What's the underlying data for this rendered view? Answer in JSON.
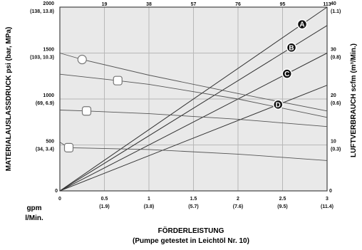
{
  "chart_data": {
    "type": "line",
    "title": "",
    "xlabel": [
      "FÖRDERLEISTUNG",
      "(Pumpe getestet in Leichtöl Nr. 10)"
    ],
    "ylabel_left": "MATERIALAUSLASSDRUCK psi (bar, MPa)",
    "ylabel_right": "LUFTVERBRAUCH scfm (m³/Min.)",
    "x_unit_label": [
      "gpm",
      "l/Min."
    ],
    "xlim": [
      0,
      3.0
    ],
    "ylim_left": [
      0,
      2000
    ],
    "ylim_right": [
      0,
      40
    ],
    "x_ticks": [
      {
        "value": 0,
        "label": "0",
        "sub": ""
      },
      {
        "value": 0.5,
        "label": "0.5",
        "sub": "(1.9)"
      },
      {
        "value": 1.0,
        "label": "1",
        "sub": "(3.8)"
      },
      {
        "value": 1.5,
        "label": "1.5",
        "sub": "(5.7)"
      },
      {
        "value": 2.0,
        "label": "2",
        "sub": "(7.6)"
      },
      {
        "value": 2.5,
        "label": "2.5",
        "sub": "(9.5)"
      },
      {
        "value": 3.0,
        "label": "3",
        "sub": "(11.4)"
      }
    ],
    "top_ticks": [
      {
        "value": 0.5,
        "label": "19"
      },
      {
        "value": 1.0,
        "label": "38"
      },
      {
        "value": 1.5,
        "label": "57"
      },
      {
        "value": 2.0,
        "label": "76"
      },
      {
        "value": 2.5,
        "label": "95"
      },
      {
        "value": 3.0,
        "label": "113"
      }
    ],
    "y_ticks_left": [
      {
        "value": 0,
        "label": "0",
        "sub": ""
      },
      {
        "value": 500,
        "label": "500",
        "sub": "(34, 3.4)"
      },
      {
        "value": 1000,
        "label": "1000",
        "sub": "(69, 6.9)"
      },
      {
        "value": 1500,
        "label": "1500",
        "sub": "(103, 10.3)"
      },
      {
        "value": 2000,
        "label": "2000",
        "sub": "(138, 13.8)"
      }
    ],
    "y_ticks_right": [
      {
        "value": 0,
        "label": "0",
        "sub": ""
      },
      {
        "value": 10,
        "label": "10",
        "sub": "(0.3)"
      },
      {
        "value": 20,
        "label": "20",
        "sub": "(0.6)"
      },
      {
        "value": 30,
        "label": "30",
        "sub": "(0.8)"
      },
      {
        "value": 40,
        "label": "40",
        "sub": "(1.1)"
      }
    ],
    "grid": true,
    "pressure_curves": [
      {
        "marker": "circle",
        "x": [
          0,
          0.25,
          1,
          2,
          3
        ],
        "y": [
          1500,
          1430,
          1260,
          1060,
          870
        ]
      },
      {
        "marker": "square",
        "x": [
          0,
          0.65,
          1,
          2,
          3
        ],
        "y": [
          1270,
          1200,
          1160,
          1000,
          800
        ]
      },
      {
        "marker": "square",
        "x": [
          0,
          0.3,
          1,
          2,
          3
        ],
        "y": [
          880,
          870,
          840,
          780,
          700
        ]
      },
      {
        "marker": "square",
        "x": [
          0,
          0.1,
          1,
          2,
          3
        ],
        "y": [
          530,
          470,
          450,
          400,
          330
        ]
      }
    ],
    "air_curves": [
      {
        "label": "A",
        "x": [
          0,
          3
        ],
        "y": [
          0,
          40
        ],
        "label_x": 2.72
      },
      {
        "label": "B",
        "x": [
          0,
          3
        ],
        "y": [
          0,
          36
        ],
        "label_x": 2.6
      },
      {
        "label": "C",
        "x": [
          0,
          3
        ],
        "y": [
          0,
          30
        ],
        "label_x": 2.55
      },
      {
        "label": "D",
        "x": [
          0,
          3
        ],
        "y": [
          0,
          23
        ],
        "label_x": 2.45
      }
    ]
  }
}
